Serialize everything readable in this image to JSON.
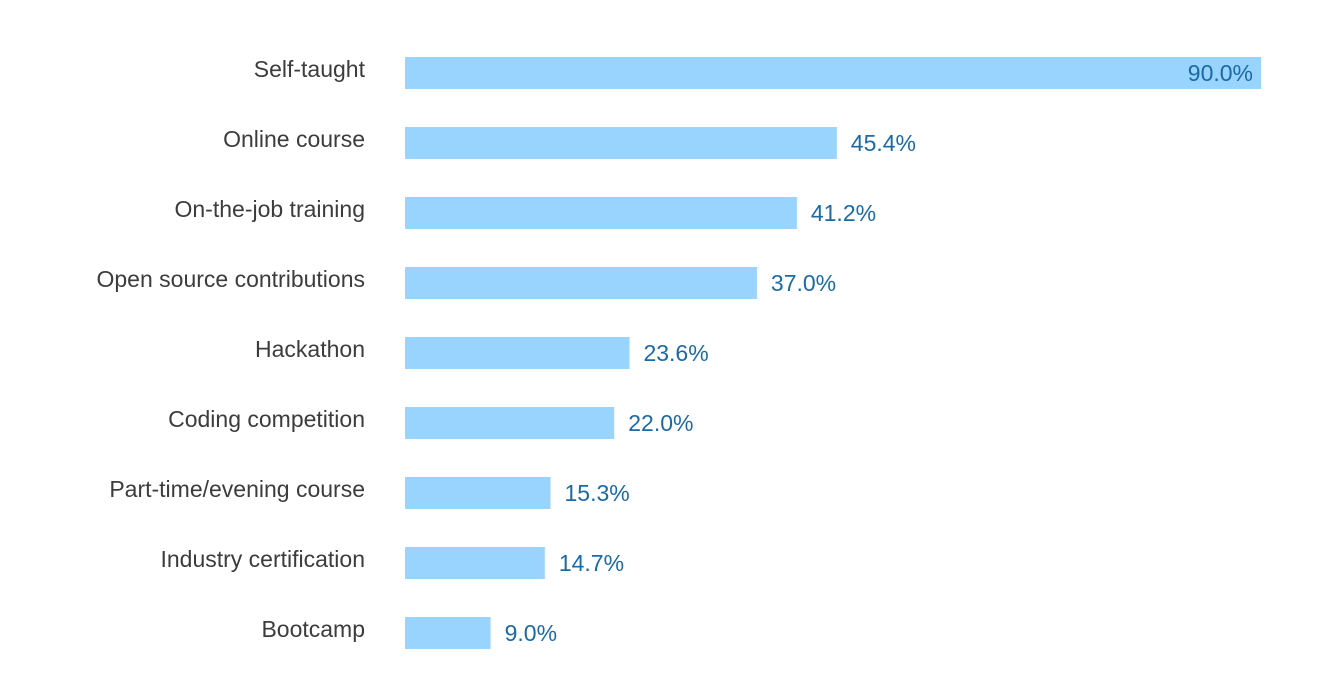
{
  "chart_data": {
    "type": "bar",
    "orientation": "horizontal",
    "categories": [
      "Self-taught",
      "Online course",
      "On-the-job training",
      "Open source contributions",
      "Hackathon",
      "Coding competition",
      "Part-time/evening course",
      "Industry certification",
      "Bootcamp"
    ],
    "values": [
      90.0,
      45.4,
      41.2,
      37.0,
      23.6,
      22.0,
      15.3,
      14.7,
      9.0
    ],
    "value_labels": [
      "90.0%",
      "45.4%",
      "41.2%",
      "37.0%",
      "23.6%",
      "22.0%",
      "15.3%",
      "14.7%",
      "9.0%"
    ],
    "title": "",
    "xlabel": "",
    "ylabel": "",
    "xlim": [
      0,
      90
    ],
    "grid": false,
    "legend": "none",
    "colors": {
      "bar": "#99d3ff",
      "value_label": "#1a6aa8",
      "category_label": "#3c3c3c"
    }
  }
}
